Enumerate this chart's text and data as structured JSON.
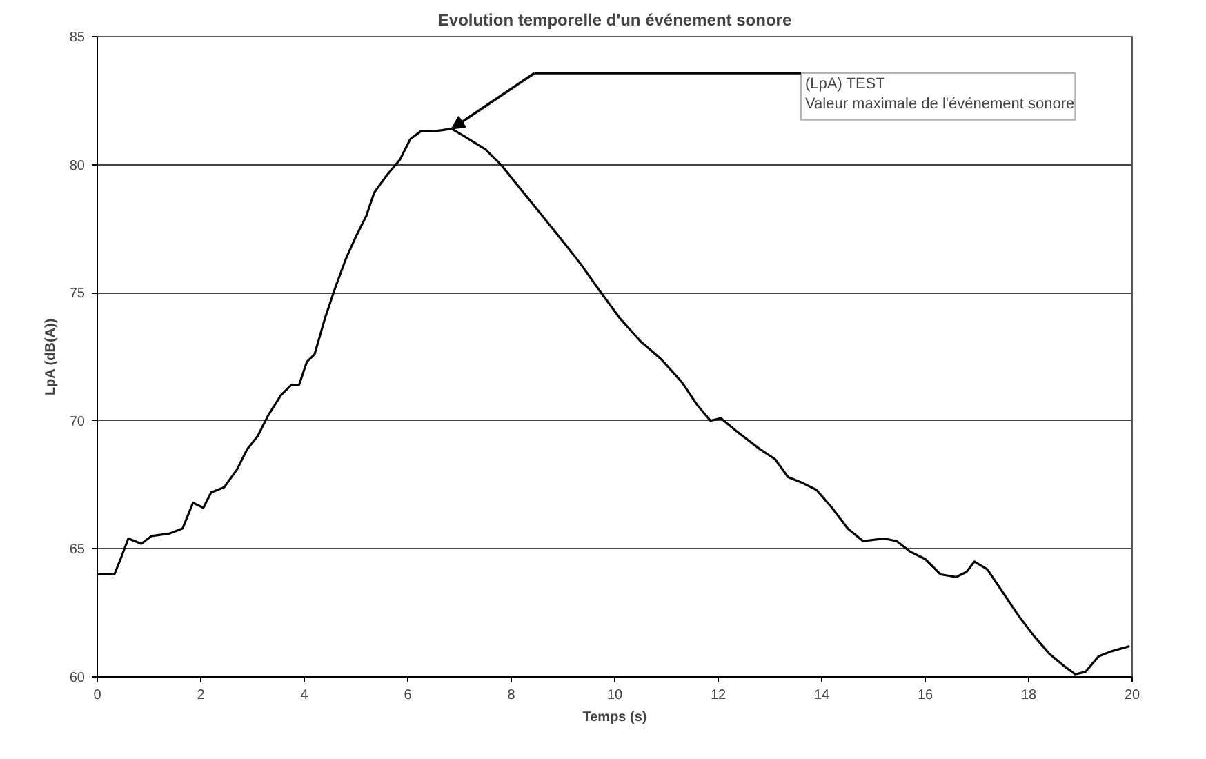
{
  "chart_data": {
    "type": "line",
    "title": "Evolution temporelle d'un événement sonore",
    "xlabel": "Temps (s)",
    "ylabel": "LpA (dB(A))",
    "x": [
      0,
      0.33,
      0.45,
      0.6,
      0.85,
      1.05,
      1.4,
      1.65,
      1.85,
      2.05,
      2.2,
      2.45,
      2.7,
      2.9,
      3.1,
      3.3,
      3.55,
      3.75,
      3.9,
      4.05,
      4.2,
      4.4,
      4.6,
      4.8,
      5.0,
      5.2,
      5.35,
      5.6,
      5.85,
      6.05,
      6.25,
      6.5,
      6.85,
      7.1,
      7.5,
      7.8,
      8.2,
      8.6,
      9.0,
      9.35,
      9.7,
      10.1,
      10.5,
      10.9,
      11.3,
      11.6,
      11.85,
      12.05,
      12.35,
      12.8,
      13.1,
      13.35,
      13.6,
      13.9,
      14.2,
      14.5,
      14.8,
      15.2,
      15.45,
      15.7,
      16.0,
      16.3,
      16.6,
      16.8,
      16.95,
      17.2,
      17.5,
      17.8,
      18.1,
      18.4,
      18.7,
      18.9,
      19.1,
      19.35,
      19.6,
      19.95
    ],
    "series": [
      {
        "color": "#000000",
        "values": [
          64,
          64,
          64.6,
          65.4,
          65.2,
          65.5,
          65.6,
          65.8,
          66.8,
          66.6,
          67.2,
          67.4,
          68.1,
          68.9,
          69.4,
          70.2,
          71.0,
          71.4,
          71.4,
          72.3,
          72.6,
          74.0,
          75.2,
          76.3,
          77.2,
          78.0,
          78.9,
          79.6,
          80.2,
          81.0,
          81.3,
          81.3,
          81.4,
          81.1,
          80.6,
          80.0,
          79.0,
          78.0,
          77.0,
          76.1,
          75.1,
          74.0,
          73.1,
          72.4,
          71.5,
          70.6,
          70.0,
          70.1,
          69.6,
          68.9,
          68.5,
          67.8,
          67.6,
          67.3,
          66.6,
          65.8,
          65.3,
          65.4,
          65.3,
          64.9,
          64.6,
          64.0,
          63.9,
          64.1,
          64.5,
          64.2,
          63.3,
          62.4,
          61.6,
          60.9,
          60.4,
          60.1,
          60.2,
          60.8,
          61.0,
          61.2
        ]
      }
    ],
    "xlim": [
      0,
      20
    ],
    "xticks": [
      0,
      2,
      4,
      6,
      8,
      10,
      12,
      14,
      16,
      18,
      20
    ],
    "ylim": [
      60,
      85
    ],
    "yticks": [
      60,
      65,
      70,
      75,
      80,
      85
    ],
    "grid": "y",
    "annotations": [
      "(LpA) TEST\nValeur maximale de l'événement sonore"
    ]
  }
}
